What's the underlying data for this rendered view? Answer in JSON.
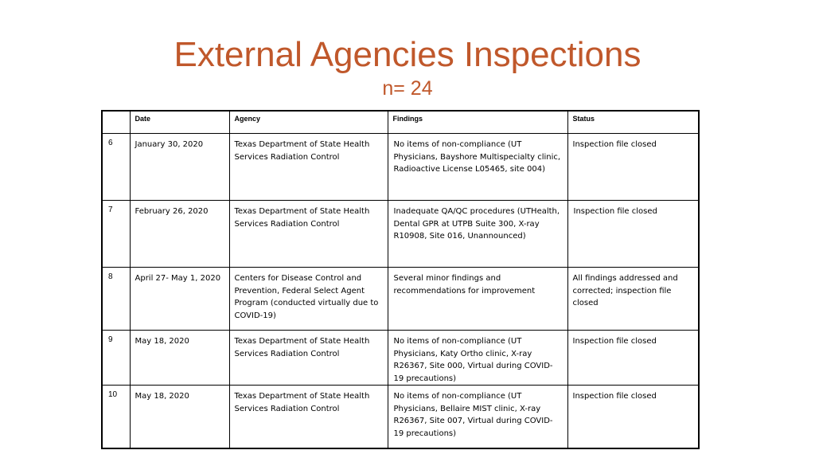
{
  "slide": {
    "title": "External Agencies Inspections",
    "subtitle": "n= 24"
  },
  "table": {
    "headers": [
      "",
      "Date",
      "Agency",
      "Findings",
      "Status"
    ],
    "rows": [
      {
        "num": "6",
        "date": "January 30, 2020",
        "agency": "Texas Department of State Health Services Radiation Control",
        "findings": "No items of non-compliance (UT Physicians, Bayshore Multispecialty clinic, Radioactive License L05465, site 004)",
        "status": "Inspection file closed"
      },
      {
        "num": "7",
        "date": "February 26, 2020",
        "agency": "Texas Department of State Health Services Radiation Control",
        "findings": "Inadequate QA/QC procedures (UTHealth, Dental GPR at UTPB Suite 300, X-ray R10908, Site 016, Unannounced)",
        "status": "Inspection file closed"
      },
      {
        "num": "8",
        "date": "April 27- May 1, 2020",
        "agency": "Centers for Disease Control and Prevention, Federal Select Agent Program (conducted virtually due to COVID-19)",
        "findings": "Several minor findings and recommendations for improvement",
        "status": "All findings addressed and corrected; inspection file closed"
      },
      {
        "num": "9",
        "date": "May 18, 2020",
        "agency": "Texas Department of State Health Services Radiation Control",
        "findings": "No items of non-compliance (UT Physicians, Katy Ortho clinic, X-ray R26367, Site 000, Virtual during COVID-19 precautions)",
        "status": "Inspection file closed"
      },
      {
        "num": "10",
        "date": "May 18, 2020",
        "agency": "Texas Department of State Health Services Radiation Control",
        "findings": "No items of non-compliance (UT Physicians, Bellaire MIST clinic, X-ray R26367, Site 007, Virtual during COVID-19 precautions)",
        "status": "Inspection file closed"
      }
    ]
  }
}
